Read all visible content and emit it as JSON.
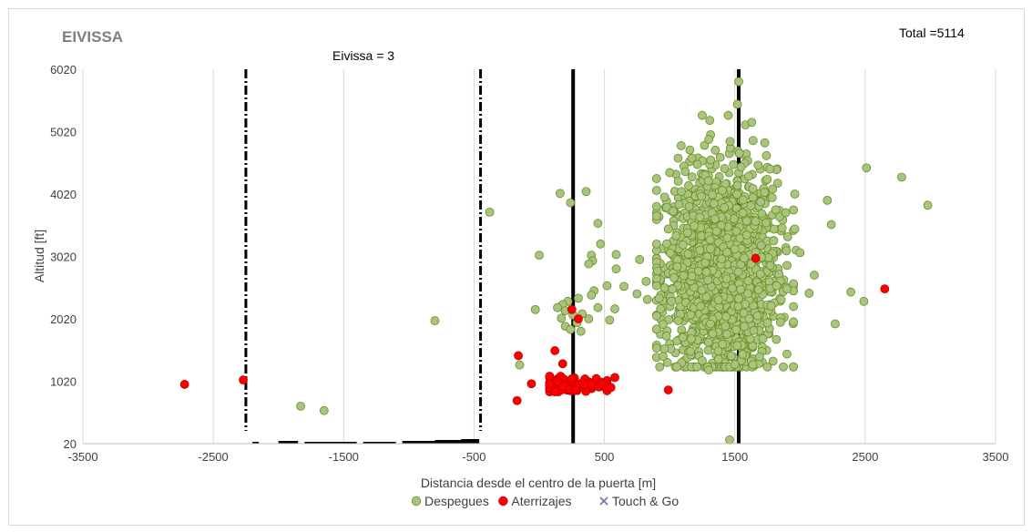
{
  "chart_data": {
    "type": "scatter",
    "title": "EIVISSA",
    "total_label": "Total =5114",
    "annotation": "Eivissa = 3",
    "xlabel": "Distancia desde el centro de la puerta [m]",
    "ylabel": "Altitud [ft]",
    "xlim": [
      -3500,
      3500
    ],
    "ylim": [
      20,
      6020
    ],
    "x_ticks": [
      -3500,
      -2500,
      -1500,
      -500,
      500,
      1500,
      2500,
      3500
    ],
    "y_ticks": [
      20,
      1020,
      2020,
      3020,
      4020,
      5020,
      6020
    ],
    "grid": "vertical",
    "legend_position": "bottom",
    "reference_lines": {
      "solid": [
        260,
        1530
      ],
      "dash_dot": [
        -2250,
        -450
      ]
    },
    "series": [
      {
        "name": "Despegues",
        "color": "#a9c47f",
        "stroke": "#6b8e23",
        "points": [
          [
            -800,
            1990
          ],
          [
            -1830,
            620
          ],
          [
            -1650,
            550
          ],
          [
            -380,
            3730
          ],
          [
            0,
            3040
          ],
          [
            -150,
            1280
          ],
          [
            -30,
            2170
          ],
          [
            160,
            4030
          ],
          [
            240,
            3880
          ],
          [
            360,
            4060
          ],
          [
            450,
            3550
          ],
          [
            470,
            3220
          ],
          [
            400,
            3040
          ],
          [
            410,
            2950
          ],
          [
            380,
            2900
          ],
          [
            590,
            3050
          ],
          [
            590,
            2820
          ],
          [
            520,
            2550
          ],
          [
            650,
            2540
          ],
          [
            420,
            2470
          ],
          [
            400,
            2400
          ],
          [
            300,
            2350
          ],
          [
            220,
            2300
          ],
          [
            180,
            2250
          ],
          [
            140,
            2200
          ],
          [
            200,
            2150
          ],
          [
            260,
            2080
          ],
          [
            330,
            2100
          ],
          [
            380,
            2020
          ],
          [
            450,
            2200
          ],
          [
            540,
            2000
          ],
          [
            580,
            2180
          ],
          [
            170,
            2030
          ],
          [
            200,
            1900
          ],
          [
            240,
            1850
          ],
          [
            320,
            1820
          ],
          [
            290,
            1960
          ],
          [
            770,
            2970
          ],
          [
            750,
            2420
          ],
          [
            820,
            2620
          ],
          [
            830,
            2330
          ],
          [
            900,
            2550
          ],
          [
            920,
            2350
          ],
          [
            930,
            2180
          ],
          [
            950,
            1930
          ],
          [
            900,
            1550
          ],
          [
            960,
            1540
          ],
          [
            990,
            3460
          ],
          [
            1050,
            3350
          ],
          [
            1090,
            4060
          ],
          [
            1120,
            4380
          ],
          [
            1250,
            5280
          ],
          [
            1450,
            5280
          ],
          [
            1520,
            5460
          ],
          [
            1530,
            5820
          ],
          [
            1630,
            5170
          ],
          [
            1730,
            4840
          ],
          [
            1770,
            4420
          ],
          [
            1790,
            4100
          ],
          [
            1890,
            3720
          ],
          [
            1960,
            4020
          ],
          [
            1960,
            3460
          ],
          [
            1970,
            3120
          ],
          [
            2000,
            3080
          ],
          [
            1820,
            2550
          ],
          [
            1900,
            2500
          ],
          [
            2110,
            2720
          ],
          [
            2070,
            2430
          ],
          [
            2210,
            3920
          ],
          [
            2240,
            3530
          ],
          [
            2270,
            1940
          ],
          [
            2390,
            2450
          ],
          [
            2490,
            2300
          ],
          [
            2510,
            4440
          ],
          [
            2780,
            4290
          ],
          [
            2980,
            3840
          ],
          [
            1460,
            80
          ],
          [
            1500,
            1290
          ],
          [
            1300,
            1200
          ],
          [
            1250,
            1350
          ],
          [
            1160,
            1500
          ]
        ],
        "cluster": {
          "cx": 1400,
          "cy": 2800,
          "sx": 210,
          "sy": 800,
          "n": 1800
        }
      },
      {
        "name": "Aterrizajes",
        "color": "#ff0000",
        "stroke": "#c00000",
        "points": [
          [
            -2720,
            970
          ],
          [
            -2270,
            1040
          ],
          [
            -160,
            1430
          ],
          [
            -170,
            710
          ],
          [
            120,
            1510
          ],
          [
            180,
            1300
          ],
          [
            250,
            2170
          ],
          [
            300,
            2020
          ],
          [
            990,
            880
          ],
          [
            1660,
            2990
          ],
          [
            2650,
            2500
          ],
          [
            580,
            1080
          ],
          [
            550,
            920
          ],
          [
            480,
            980
          ],
          [
            -60,
            980
          ]
        ],
        "cluster": {
          "cx": 250,
          "cy": 970,
          "sx": 170,
          "sy": 60,
          "n": 110
        }
      },
      {
        "name": "Touch & Go",
        "color": "#7f6aa5",
        "stroke": "#7f6aa5",
        "points": []
      }
    ]
  }
}
